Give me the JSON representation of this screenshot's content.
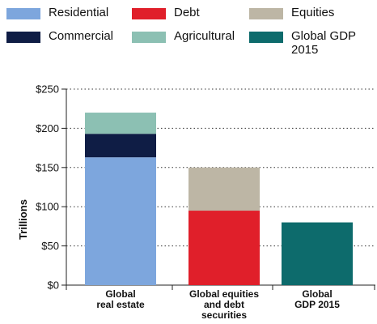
{
  "legend": [
    {
      "label": "Residential",
      "color": "#7da6dd"
    },
    {
      "label": "Debt",
      "color": "#e01f2a"
    },
    {
      "label": "Equities",
      "color": "#bdb6a5"
    },
    {
      "label": "Commercial",
      "color": "#0f1d45"
    },
    {
      "label": "Agricultural",
      "color": "#8cc0b3"
    },
    {
      "label": "Global GDP\n2015",
      "color": "#0d6b6c"
    }
  ],
  "chart_data": {
    "type": "bar",
    "stacked": true,
    "ylabel": "Trillions",
    "ylim": [
      0,
      250
    ],
    "y_ticks": [
      0,
      50,
      100,
      150,
      200,
      250
    ],
    "y_tick_labels": [
      "$0",
      "$50",
      "$100",
      "$150",
      "$200",
      "$250"
    ],
    "grid": "dotted horizontal",
    "categories": [
      "Global\nreal estate",
      "Global equities\nand debt\nsecurities",
      "Global\nGDP 2015"
    ],
    "series": [
      {
        "name": "Residential",
        "color": "#7da6dd",
        "values": [
          163,
          0,
          0
        ]
      },
      {
        "name": "Commercial",
        "color": "#0f1d45",
        "values": [
          30,
          0,
          0
        ]
      },
      {
        "name": "Agricultural",
        "color": "#8cc0b3",
        "values": [
          27,
          0,
          0
        ]
      },
      {
        "name": "Debt",
        "color": "#e01f2a",
        "values": [
          0,
          95,
          0
        ]
      },
      {
        "name": "Equities",
        "color": "#bdb6a5",
        "values": [
          0,
          55,
          0
        ]
      },
      {
        "name": "Global GDP\n2015",
        "color": "#0d6b6c",
        "values": [
          0,
          0,
          80
        ]
      }
    ]
  }
}
